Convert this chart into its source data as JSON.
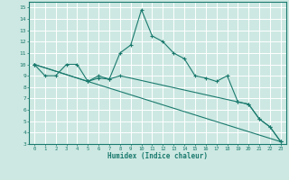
{
  "title": "",
  "xlabel": "Humidex (Indice chaleur)",
  "bg_color": "#cde8e2",
  "grid_color": "#ffffff",
  "line_color": "#1a7a6e",
  "xlim": [
    -0.5,
    23.5
  ],
  "ylim": [
    3,
    15.5
  ],
  "yticks": [
    3,
    4,
    5,
    6,
    7,
    8,
    9,
    10,
    11,
    12,
    13,
    14,
    15
  ],
  "xticks": [
    0,
    1,
    2,
    3,
    4,
    5,
    6,
    7,
    8,
    9,
    10,
    11,
    12,
    13,
    14,
    15,
    16,
    17,
    18,
    19,
    20,
    21,
    22,
    23
  ],
  "line1_x": [
    0,
    1,
    2,
    3,
    4,
    5,
    6,
    7,
    8,
    9,
    10,
    11,
    12,
    13,
    14,
    15,
    16,
    17,
    18,
    19,
    20,
    21,
    22,
    23
  ],
  "line1_y": [
    10.0,
    9.0,
    9.0,
    10.0,
    10.0,
    8.5,
    9.0,
    8.7,
    11.0,
    11.7,
    14.8,
    12.5,
    12.0,
    11.0,
    10.5,
    9.0,
    8.8,
    8.5,
    9.0,
    6.7,
    6.5,
    5.2,
    4.5,
    3.2
  ],
  "line2_x": [
    0,
    5,
    6,
    7,
    8,
    19,
    20,
    21,
    22,
    23
  ],
  "line2_y": [
    10.0,
    8.5,
    8.8,
    8.7,
    9.0,
    6.7,
    6.5,
    5.2,
    4.5,
    3.2
  ],
  "line3_x": [
    0,
    5,
    23
  ],
  "line3_y": [
    10.0,
    8.5,
    3.2
  ]
}
